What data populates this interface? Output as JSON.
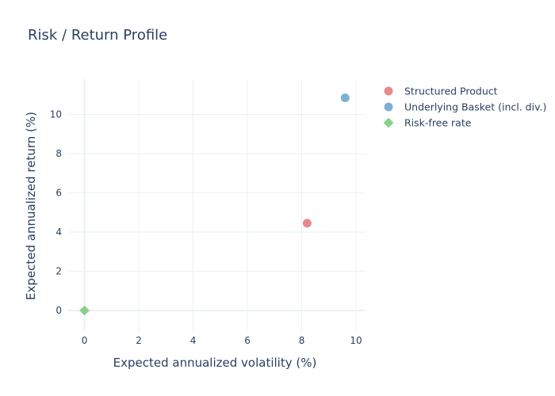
{
  "chart_data": {
    "type": "scatter",
    "title": "Risk / Return Profile",
    "xlabel": "Expected annualized volatility (%)",
    "ylabel": "Expected annualized return (%)",
    "xlim": [
      -0.6,
      10.35
    ],
    "ylim": [
      -1.05,
      11.8
    ],
    "xticks": [
      0,
      2,
      4,
      6,
      8,
      10
    ],
    "yticks": [
      0,
      2,
      4,
      6,
      8,
      10
    ],
    "grid": true,
    "legend_position": "top-right",
    "series": [
      {
        "name": "Structured Product",
        "color": "#e8898c",
        "marker": "circle",
        "x": [
          8.2
        ],
        "y": [
          4.45
        ]
      },
      {
        "name": "Underlying Basket (incl. div.)",
        "color": "#7eb0d5",
        "marker": "circle",
        "x": [
          9.6
        ],
        "y": [
          10.85
        ]
      },
      {
        "name": "Risk-free rate",
        "color": "#8bd08b",
        "marker": "diamond",
        "x": [
          0
        ],
        "y": [
          0
        ]
      }
    ]
  }
}
